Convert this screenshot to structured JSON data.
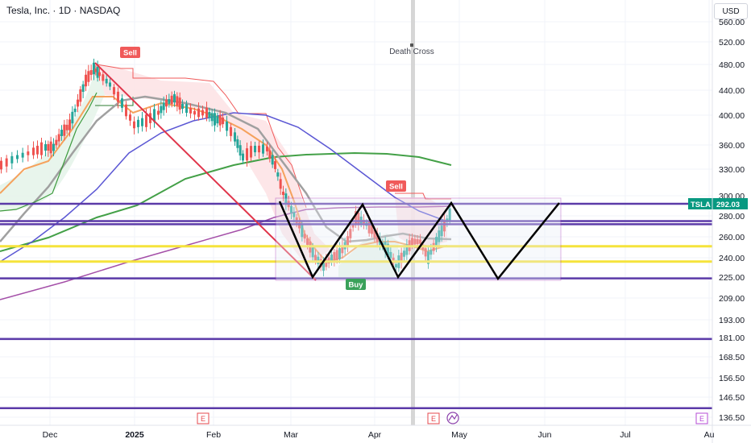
{
  "header": {
    "title": "Tesla, Inc. · 1D · NASDAQ",
    "currency": "USD"
  },
  "chart_data": {
    "type": "line",
    "symbol": "TSLA",
    "last_price": "292.03",
    "y_ticks": [
      "560.00",
      "520.00",
      "480.00",
      "440.00",
      "400.00",
      "360.00",
      "330.00",
      "300.00",
      "280.00",
      "260.00",
      "240.00",
      "225.00",
      "209.00",
      "193.00",
      "181.00",
      "168.50",
      "156.50",
      "146.50",
      "136.50"
    ],
    "y_tick_values": [
      560,
      520,
      480,
      440,
      400,
      360,
      330,
      300,
      280,
      260,
      240,
      225,
      209,
      193,
      181,
      168.5,
      156.5,
      146.5,
      136.5
    ],
    "x_ticks": [
      {
        "label": "Dec",
        "bold": false
      },
      {
        "label": "2025",
        "bold": true
      },
      {
        "label": "Feb",
        "bold": false
      },
      {
        "label": "Mar",
        "bold": false
      },
      {
        "label": "Apr",
        "bold": false
      },
      {
        "label": "May",
        "bold": false
      },
      {
        "label": "Jun",
        "bold": false
      },
      {
        "label": "Jul",
        "bold": false
      },
      {
        "label": "Au",
        "bold": false
      }
    ],
    "horizontal_levels": [
      {
        "price": 292.03,
        "color": "#5b3aa8"
      },
      {
        "price": 275,
        "color": "#5b3aa8"
      },
      {
        "price": 272,
        "color": "#5b3aa8"
      },
      {
        "price": 251,
        "color": "#f5e33b"
      },
      {
        "price": 237,
        "color": "#f5e33b"
      },
      {
        "price": 224,
        "color": "#5b3aa8"
      },
      {
        "price": 180,
        "color": "#5b3aa8"
      },
      {
        "price": 141,
        "color": "#5b3aa8"
      }
    ],
    "annotations": {
      "sell_1": "Sell",
      "sell_2": "Sell",
      "buy": "Buy",
      "death_cross": "Death Cross"
    },
    "event_markers": [
      "E",
      "E",
      "E"
    ],
    "colors": {
      "up": "#26a69a",
      "down": "#ef5350",
      "ema_fast": "#f5a25d",
      "ema_mid": "#a0a0a0",
      "ema_blue": "#5b57d4",
      "ema_green": "#43a047",
      "ema_purple": "#a44fa8",
      "zigzag": "#000000",
      "trendline": "#e0344a",
      "range_box": "#9c27b0"
    }
  }
}
